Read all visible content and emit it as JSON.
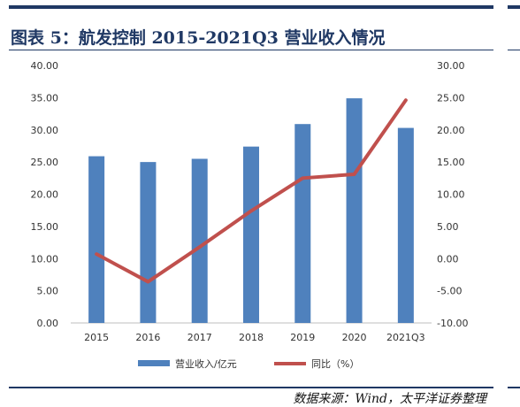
{
  "title": "图表 5：航发控制 2015-2021Q3 营业收入情况",
  "source": "数据来源：Wind，太平洋证券整理",
  "colors": {
    "bar": "#4f81bd",
    "line": "#c0504d",
    "rule": "#1f3864"
  },
  "chart_data": {
    "type": "bar",
    "categories": [
      "2015",
      "2016",
      "2017",
      "2018",
      "2019",
      "2020",
      "2021Q3"
    ],
    "series": [
      {
        "name": "营业收入/亿元",
        "type": "bar",
        "axis": "left",
        "values": [
          25.9,
          25.0,
          25.5,
          27.4,
          30.9,
          34.9,
          30.3
        ]
      },
      {
        "name": "同比（%）",
        "type": "line",
        "axis": "right",
        "values": [
          0.7,
          -3.6,
          1.8,
          7.4,
          12.5,
          13.1,
          24.6
        ]
      }
    ],
    "y_left": {
      "min": 0,
      "max": 40,
      "step": 5,
      "ticks": [
        "0.00",
        "5.00",
        "10.00",
        "15.00",
        "20.00",
        "25.00",
        "30.00",
        "35.00",
        "40.00"
      ]
    },
    "y_right": {
      "min": -10,
      "max": 30,
      "step": 5,
      "ticks": [
        "-10.00",
        "-5.00",
        "0.00",
        "5.00",
        "10.00",
        "15.00",
        "20.00",
        "25.00",
        "30.00"
      ]
    },
    "grid": false,
    "legend_position": "bottom"
  }
}
